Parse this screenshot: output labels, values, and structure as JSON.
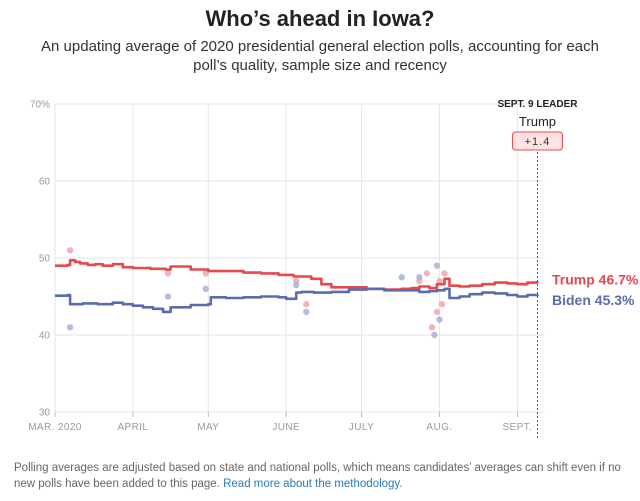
{
  "header": {
    "title": "Who’s ahead in Iowa?",
    "subtitle": "An updating average of 2020 presidential general election polls, accounting for each poll’s quality, sample size and recency"
  },
  "leader": {
    "heading": "SEPT. 9 LEADER",
    "name": "Trump",
    "margin": "+1.4"
  },
  "footnote": {
    "text": "Polling averages are adjusted based on state and national polls, which means candidates’ averages can shift even if no new polls have been added to this page.",
    "link_text": "Read more about the methodology."
  },
  "chart_data": {
    "type": "line",
    "ylim": [
      30,
      70
    ],
    "yticks": [
      30,
      40,
      50,
      60,
      70
    ],
    "ytick_labels": [
      "30",
      "40",
      "50",
      "60",
      "70%"
    ],
    "xlim": [
      "2020-03-01",
      "2020-09-12"
    ],
    "xticks": [
      "2020-03-01",
      "2020-04-01",
      "2020-05-01",
      "2020-06-01",
      "2020-07-01",
      "2020-08-01",
      "2020-09-01"
    ],
    "xtick_labels": [
      "MAR. 2020",
      "APRIL",
      "MAY",
      "JUNE",
      "JULY",
      "AUG.",
      "SEPT."
    ],
    "grid": true,
    "today": "2020-09-09",
    "series": [
      {
        "name": "Trump",
        "end_label": "Trump 46.7%",
        "color": "#e5484d",
        "poll_color": "#f2a7aa",
        "x": [
          "2020-03-01",
          "2020-03-06",
          "2020-03-07",
          "2020-03-09",
          "2020-03-11",
          "2020-03-14",
          "2020-03-17",
          "2020-03-20",
          "2020-03-24",
          "2020-03-28",
          "2020-04-01",
          "2020-04-08",
          "2020-04-14",
          "2020-04-16",
          "2020-04-24",
          "2020-05-01",
          "2020-05-08",
          "2020-05-15",
          "2020-05-22",
          "2020-05-29",
          "2020-06-04",
          "2020-06-08",
          "2020-06-11",
          "2020-06-15",
          "2020-06-19",
          "2020-06-26",
          "2020-07-03",
          "2020-07-10",
          "2020-07-17",
          "2020-07-21",
          "2020-07-24",
          "2020-07-28",
          "2020-07-31",
          "2020-08-03",
          "2020-08-05",
          "2020-08-09",
          "2020-08-13",
          "2020-08-18",
          "2020-08-23",
          "2020-08-28",
          "2020-09-01",
          "2020-09-05",
          "2020-09-09"
        ],
        "values": [
          49.0,
          49.1,
          49.7,
          49.5,
          49.3,
          49.1,
          49.2,
          49.0,
          49.2,
          48.8,
          48.7,
          48.6,
          48.5,
          48.9,
          48.5,
          48.3,
          48.3,
          48.1,
          48.0,
          47.8,
          47.6,
          47.6,
          47.3,
          46.6,
          46.2,
          46.2,
          46.0,
          45.9,
          46.0,
          46.1,
          46.3,
          46.1,
          46.6,
          47.3,
          46.4,
          46.3,
          46.4,
          46.6,
          46.8,
          46.7,
          46.6,
          46.8,
          46.7
        ]
      },
      {
        "name": "Biden",
        "end_label": "Biden 45.3%",
        "color": "#5b6cae",
        "poll_color": "#a9b2d6",
        "x": [
          "2020-03-01",
          "2020-03-06",
          "2020-03-07",
          "2020-03-12",
          "2020-03-18",
          "2020-03-24",
          "2020-03-28",
          "2020-04-01",
          "2020-04-05",
          "2020-04-09",
          "2020-04-13",
          "2020-04-16",
          "2020-04-24",
          "2020-05-01",
          "2020-05-02",
          "2020-05-08",
          "2020-05-15",
          "2020-05-22",
          "2020-05-29",
          "2020-06-01",
          "2020-06-05",
          "2020-06-07",
          "2020-06-12",
          "2020-06-19",
          "2020-06-26",
          "2020-07-03",
          "2020-07-10",
          "2020-07-17",
          "2020-07-24",
          "2020-07-28",
          "2020-07-31",
          "2020-08-03",
          "2020-08-05",
          "2020-08-09",
          "2020-08-13",
          "2020-08-18",
          "2020-08-23",
          "2020-08-28",
          "2020-09-01",
          "2020-09-05",
          "2020-09-09"
        ],
        "values": [
          45.1,
          45.2,
          44.0,
          44.1,
          44.0,
          44.2,
          44.0,
          43.8,
          43.6,
          43.4,
          43.0,
          43.6,
          43.9,
          44.0,
          44.9,
          44.8,
          44.9,
          45.0,
          44.9,
          44.7,
          45.5,
          45.6,
          45.5,
          45.6,
          45.9,
          46.0,
          45.8,
          45.8,
          45.6,
          45.7,
          45.8,
          46.0,
          44.8,
          45.0,
          45.3,
          45.5,
          45.4,
          45.2,
          45.0,
          45.2,
          45.3
        ]
      }
    ],
    "polls": [
      {
        "candidate": "Trump",
        "x": "2020-03-07",
        "y": 51.0
      },
      {
        "candidate": "Biden",
        "x": "2020-03-07",
        "y": 41.0
      },
      {
        "candidate": "Trump",
        "x": "2020-04-15",
        "y": 48.0
      },
      {
        "candidate": "Biden",
        "x": "2020-04-15",
        "y": 45.0
      },
      {
        "candidate": "Trump",
        "x": "2020-04-30",
        "y": 48.0
      },
      {
        "candidate": "Biden",
        "x": "2020-04-30",
        "y": 46.0
      },
      {
        "candidate": "Trump",
        "x": "2020-06-05",
        "y": 47.0
      },
      {
        "candidate": "Biden",
        "x": "2020-06-05",
        "y": 46.5
      },
      {
        "candidate": "Trump",
        "x": "2020-06-09",
        "y": 44.0
      },
      {
        "candidate": "Biden",
        "x": "2020-06-09",
        "y": 43.0
      },
      {
        "candidate": "Biden",
        "x": "2020-07-17",
        "y": 47.5
      },
      {
        "candidate": "Trump",
        "x": "2020-07-24",
        "y": 47.0
      },
      {
        "candidate": "Biden",
        "x": "2020-07-24",
        "y": 47.5
      },
      {
        "candidate": "Trump",
        "x": "2020-07-27",
        "y": 48.0
      },
      {
        "candidate": "Trump",
        "x": "2020-07-29",
        "y": 41.0
      },
      {
        "candidate": "Biden",
        "x": "2020-07-30",
        "y": 40.0
      },
      {
        "candidate": "Biden",
        "x": "2020-07-31",
        "y": 49.0
      },
      {
        "candidate": "Trump",
        "x": "2020-07-31",
        "y": 43.0
      },
      {
        "candidate": "Trump",
        "x": "2020-08-01",
        "y": 47.0
      },
      {
        "candidate": "Biden",
        "x": "2020-08-01",
        "y": 42.0
      },
      {
        "candidate": "Trump",
        "x": "2020-08-02",
        "y": 44.0
      },
      {
        "candidate": "Trump",
        "x": "2020-08-03",
        "y": 48.0
      }
    ]
  }
}
